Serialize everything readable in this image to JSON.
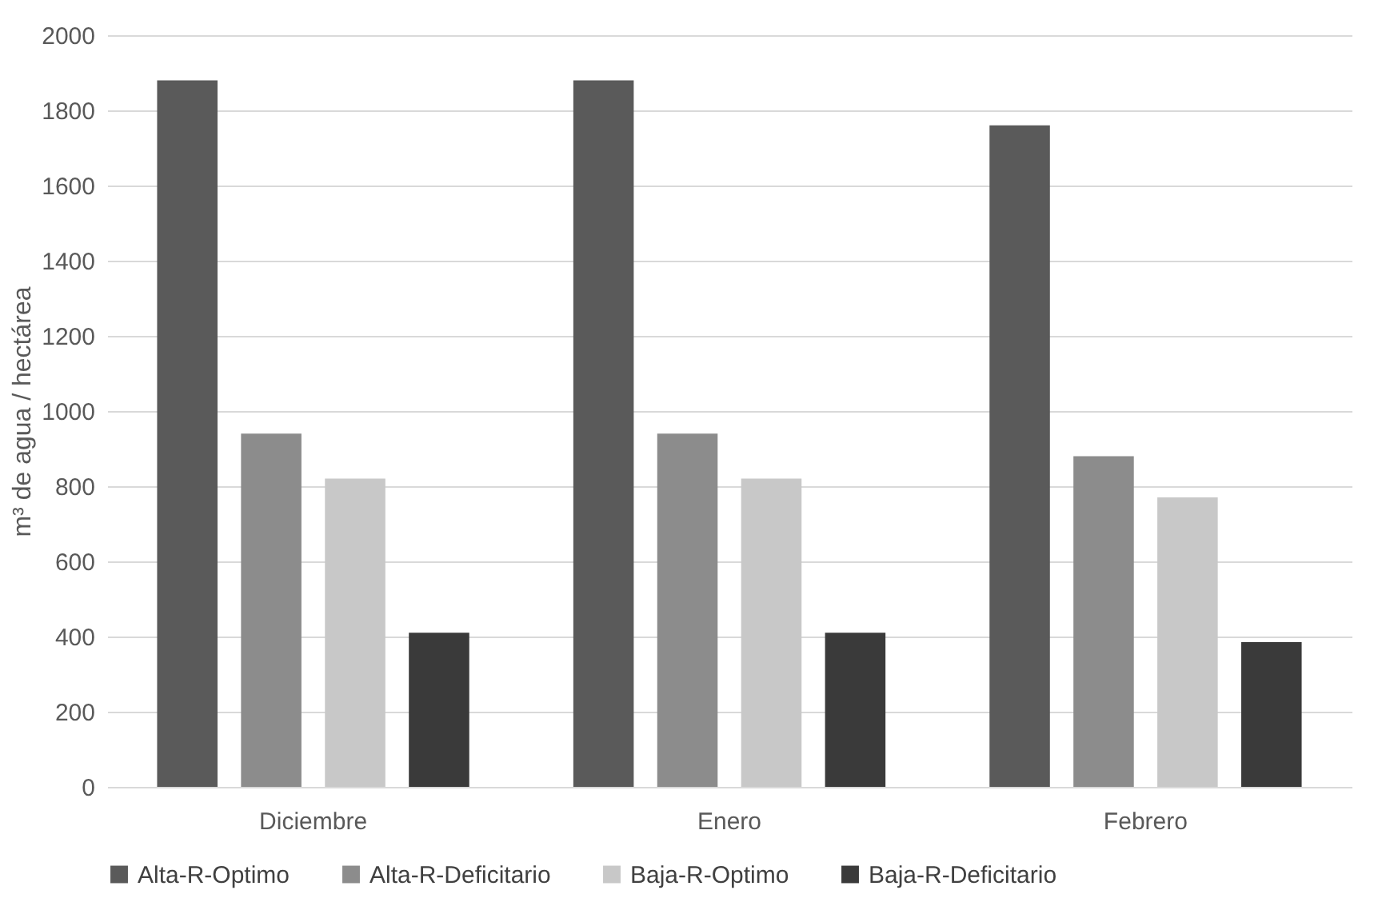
{
  "chart_data": {
    "type": "bar",
    "ylabel": "m³ de agua / hectárea",
    "categories": [
      "Diciembre",
      "Enero",
      "Febrero"
    ],
    "series": [
      {
        "name": "Alta-R-Optimo",
        "color": "#5a5a5a",
        "values": [
          1880,
          1880,
          1760
        ]
      },
      {
        "name": "Alta-R-Deficitario",
        "color": "#8c8c8c",
        "values": [
          940,
          940,
          880
        ]
      },
      {
        "name": "Baja-R-Optimo",
        "color": "#c8c8c8",
        "values": [
          820,
          820,
          770
        ]
      },
      {
        "name": "Baja-R-Deficitario",
        "color": "#3a3a3a",
        "values": [
          410,
          410,
          385
        ]
      }
    ],
    "ylim": [
      0,
      2000
    ],
    "yticks": [
      0,
      200,
      400,
      600,
      800,
      1000,
      1200,
      1400,
      1600,
      1800,
      2000
    ],
    "grid": "y",
    "legend": "bottom"
  }
}
